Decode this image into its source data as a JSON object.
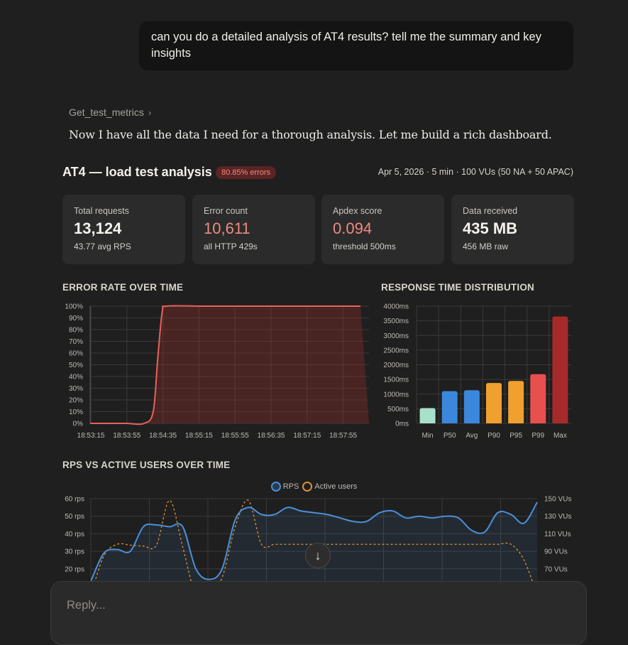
{
  "chat": {
    "user_message": "can you do a detailed analysis of AT4 results? tell me the summary and key insights",
    "tool_call": "Get_test_metrics",
    "assistant_text": "Now I have all the data I need for a thorough analysis. Let me build a rich dashboard."
  },
  "dashboard": {
    "title": "AT4 — load test analysis",
    "badge": "80.85% errors",
    "meta": "Apr 5, 2026 · 5 min · 100 VUs (50 NA + 50 APAC)",
    "cards": [
      {
        "label": "Total requests",
        "value": "13,124",
        "sub": "43.77 avg RPS"
      },
      {
        "label": "Error count",
        "value": "10,611",
        "sub": "all HTTP 429s"
      },
      {
        "label": "Apdex score",
        "value": "0.094",
        "sub": "threshold 500ms"
      },
      {
        "label": "Data received",
        "value": "435 MB",
        "sub": "456 MB raw"
      }
    ],
    "colors": {
      "accent_red": "#ef8a80",
      "line_blue": "#4a90d9",
      "line_orange": "#d9923a"
    }
  },
  "chart_data": [
    {
      "type": "area",
      "title": "ERROR RATE OVER TIME",
      "x": [
        "18:53:15",
        "18:53:35",
        "18:53:55",
        "18:54:15",
        "18:54:25",
        "18:54:30",
        "18:54:35",
        "18:54:40",
        "18:55:15",
        "18:55:55",
        "18:56:35",
        "18:57:15",
        "18:57:55",
        "18:58:15"
      ],
      "xticks": [
        "18:53:15",
        "18:53:55",
        "18:54:35",
        "18:55:15",
        "18:55:55",
        "18:56:35",
        "18:57:15",
        "18:57:55"
      ],
      "yticks": [
        "0%",
        "10%",
        "20%",
        "30%",
        "40%",
        "50%",
        "60%",
        "70%",
        "80%",
        "90%",
        "100%"
      ],
      "series": [
        {
          "values": [
            0,
            0,
            0,
            0,
            10,
            55,
            95,
            100,
            100,
            100,
            100,
            100,
            100,
            100
          ]
        }
      ],
      "ylim": [
        0,
        100
      ],
      "grid": true
    },
    {
      "type": "bar",
      "title": "RESPONSE TIME DISTRIBUTION",
      "categories": [
        "Min",
        "P50",
        "Avg",
        "P90",
        "P95",
        "P99",
        "Max"
      ],
      "values": [
        520,
        1100,
        1130,
        1380,
        1450,
        1680,
        3650
      ],
      "colors": [
        "#a8e0cc",
        "#3b87dc",
        "#3b87dc",
        "#f0a02e",
        "#f0a02e",
        "#e8504e",
        "#a72a2a"
      ],
      "yticks": [
        "0ms",
        "500ms",
        "1000ms",
        "1500ms",
        "2000ms",
        "2500ms",
        "3000ms",
        "3500ms",
        "4000ms"
      ],
      "ylim": [
        0,
        4000
      ],
      "grid": true
    },
    {
      "type": "line",
      "title": "RPS VS ACTIVE USERS OVER TIME",
      "legend": [
        "RPS",
        "Active users"
      ],
      "yticks_left": [
        "20 rps",
        "30 rps",
        "40 rps",
        "50 rps",
        "60 rps"
      ],
      "yticks_right": [
        "70 VUs",
        "90 VUs",
        "110 VUs",
        "130 VUs",
        "150 VUs"
      ],
      "ylim_left": [
        10,
        60
      ],
      "ylim_right": [
        50,
        150
      ],
      "series": [
        {
          "name": "RPS",
          "values": [
            13,
            29,
            31,
            30,
            44,
            45,
            44,
            44,
            20,
            14,
            20,
            48,
            55,
            51,
            51,
            55,
            53,
            52,
            51,
            49,
            47,
            47,
            52,
            53,
            49,
            50,
            49,
            50,
            49,
            42,
            41,
            52,
            51,
            46,
            58
          ]
        },
        {
          "name": "Active users",
          "values": [
            40,
            85,
            98,
            97,
            96,
            97,
            148,
            95,
            40,
            42,
            60,
            118,
            148,
            98,
            98,
            98,
            98,
            98,
            98,
            98,
            98,
            98,
            98,
            98,
            98,
            98,
            98,
            98,
            98,
            98,
            98,
            98,
            98,
            80,
            40
          ]
        }
      ],
      "grid": true
    }
  ],
  "ui": {
    "scroll_icon": "↓",
    "reply_placeholder": "Reply..."
  }
}
